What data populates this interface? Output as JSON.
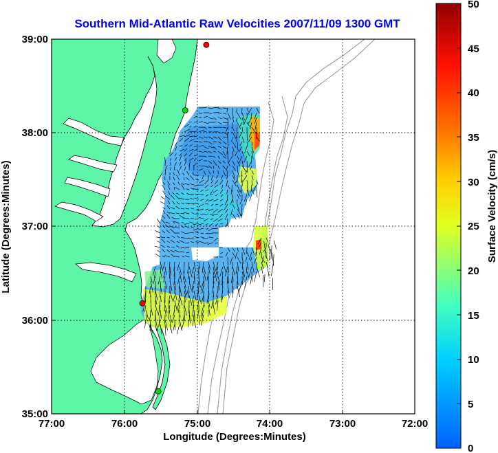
{
  "title": "Southern Mid-Atlantic Raw Velocities 2007/11/09 1300 GMT",
  "x_axis": {
    "label": "Longitude (Degrees:Minutes)",
    "ticks": [
      "77:00",
      "76:00",
      "75:00",
      "74:00",
      "73:00",
      "72:00"
    ]
  },
  "y_axis": {
    "label": "Latitude (Degrees:Minutes)",
    "ticks": [
      "39:00",
      "38:00",
      "37:00",
      "36:00",
      "35:00"
    ]
  },
  "colorbar": {
    "label": "Surface Velocity (cm/s)",
    "ticks": [
      "50",
      "45",
      "40",
      "35",
      "30",
      "25",
      "20",
      "15",
      "10",
      "5",
      "0"
    ],
    "min": 0,
    "max": 50
  },
  "colors": {
    "land": "#5ef5a8",
    "water": "#ffffff",
    "title": "#0000ff",
    "bathymetry": "#9a9a9a",
    "station_red": "#ff0000",
    "station_green": "#00dd00"
  },
  "map": {
    "lon_range": [
      -77,
      -72
    ],
    "lat_range": [
      35,
      39
    ],
    "grid": "dotted",
    "stations": [
      {
        "color": "red",
        "lon": -74.87,
        "lat": 38.94
      },
      {
        "color": "green",
        "lon": -75.16,
        "lat": 38.24
      },
      {
        "color": "red",
        "lon": -75.75,
        "lat": 36.18
      },
      {
        "color": "green",
        "lon": -75.53,
        "lat": 35.24
      }
    ]
  }
}
